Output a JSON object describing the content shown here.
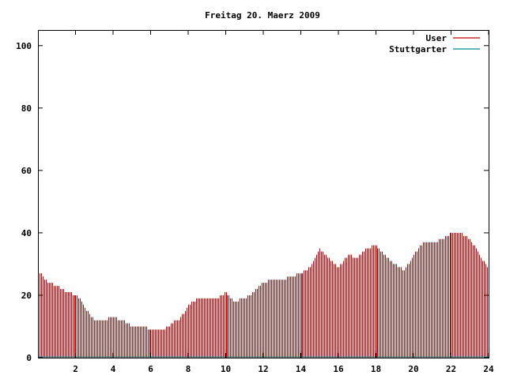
{
  "chart_data": {
    "type": "bar",
    "title": "Freitag 20. Maerz 2009",
    "xlabel": "",
    "ylabel": "",
    "xlim": [
      0,
      24
    ],
    "ylim": [
      0,
      105
    ],
    "x_ticks": [
      "2",
      "4",
      "6",
      "8",
      "10",
      "12",
      "14",
      "16",
      "18",
      "20",
      "22",
      "24"
    ],
    "y_ticks": [
      "0",
      "20",
      "40",
      "60",
      "80",
      "100"
    ],
    "grid": false,
    "legend": "top-right",
    "series": [
      {
        "name": "User",
        "color": "#cc0000",
        "x_hours": [
          0.0,
          0.5,
          1.0,
          1.5,
          2.0,
          2.25,
          2.5,
          3.0,
          3.5,
          4.0,
          4.5,
          5.0,
          5.5,
          6.0,
          6.5,
          7.0,
          7.25,
          7.5,
          8.0,
          8.5,
          9.0,
          9.5,
          10.0,
          10.5,
          11.0,
          11.5,
          12.0,
          12.5,
          13.0,
          13.5,
          14.0,
          14.5,
          15.0,
          15.5,
          16.0,
          16.5,
          17.0,
          17.5,
          18.0,
          18.5,
          19.0,
          19.5,
          20.0,
          20.5,
          21.0,
          21.5,
          22.0,
          22.5,
          23.0,
          23.5,
          24.0
        ],
        "values": [
          28,
          24,
          23,
          21,
          20,
          19,
          16,
          12,
          12,
          13,
          12,
          10,
          10,
          9,
          9,
          10,
          12,
          12,
          17,
          19,
          19,
          19,
          21,
          18,
          19,
          21,
          24,
          25,
          25,
          26,
          27,
          29,
          35,
          32,
          29,
          33,
          32,
          35,
          36,
          33,
          30,
          28,
          33,
          37,
          37,
          38,
          40,
          40,
          38,
          33,
          28
        ]
      },
      {
        "name": "Stuttgarter",
        "color": "#008b8b",
        "x_hours": [
          0,
          24
        ],
        "values": [
          0,
          0
        ]
      }
    ]
  }
}
